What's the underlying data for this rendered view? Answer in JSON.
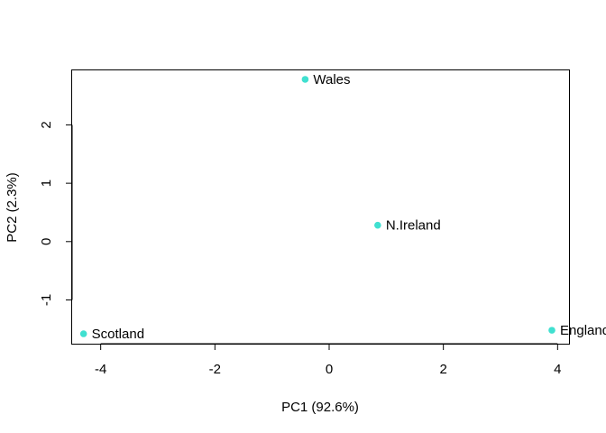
{
  "chart_data": {
    "type": "scatter",
    "title": "",
    "xlabel": "PC1 (92.6%)",
    "ylabel": "PC2 (2.3%)",
    "xlim": [
      -4.5,
      4.2
    ],
    "ylim": [
      -1.75,
      2.95
    ],
    "x_ticks": [
      -4,
      -2,
      0,
      2,
      4
    ],
    "y_ticks": [
      -1,
      0,
      1,
      2
    ],
    "grid": false,
    "legend": "none",
    "point_color": "#40E0D0",
    "points": [
      {
        "label": "Wales",
        "x": -0.42,
        "y": 2.78
      },
      {
        "label": "N.Ireland",
        "x": 0.85,
        "y": 0.28
      },
      {
        "label": "Scotland",
        "x": -4.3,
        "y": -1.58
      },
      {
        "label": "England",
        "x": 3.9,
        "y": -1.52
      }
    ]
  }
}
